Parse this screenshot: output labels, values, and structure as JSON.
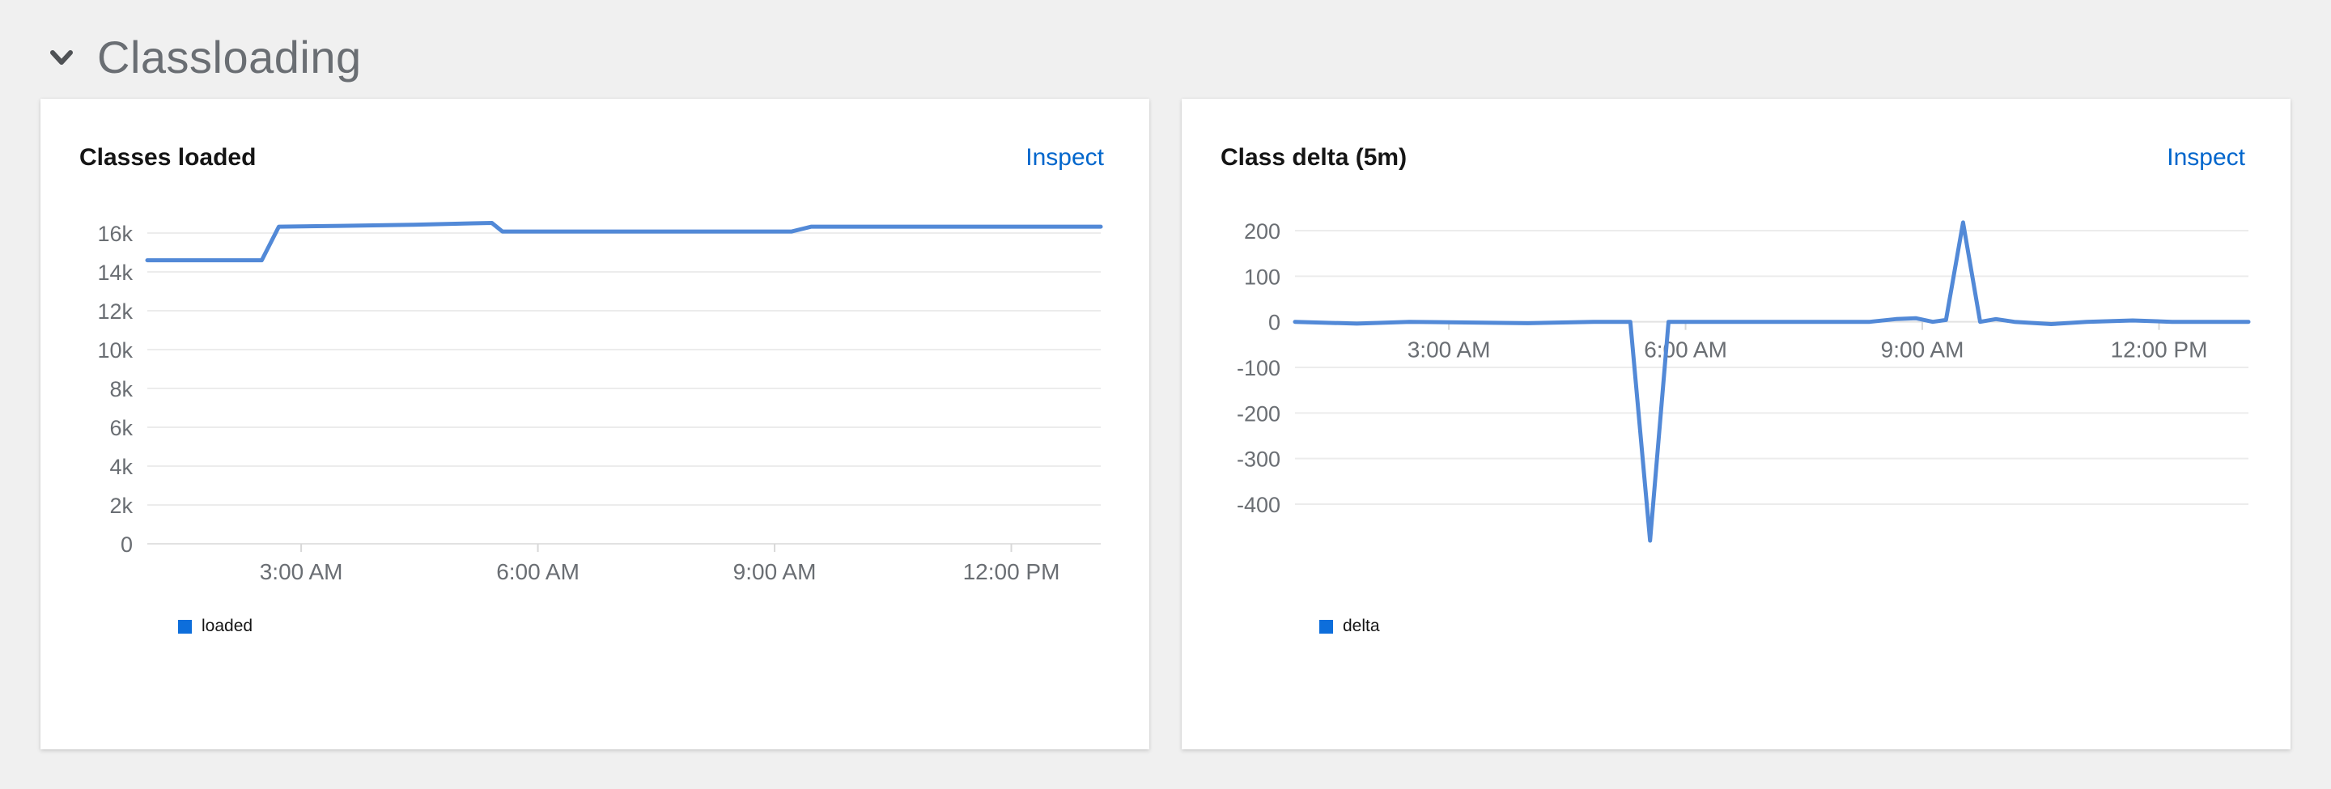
{
  "page": {
    "background": "#f0f0f0"
  },
  "section": {
    "title": "Classloading"
  },
  "colors": {
    "link": "#0066cc",
    "line": "#5289d7",
    "grid": "#ececec",
    "zero_line": "#e2e2e2",
    "tick_mark": "#d8d8d8",
    "axis_text": "#6a6e73",
    "section_title": "#6a6e73",
    "card_title": "#151515"
  },
  "cards": [
    {
      "title": "Classes loaded",
      "action": "Inspect",
      "legend": [
        {
          "label": "loaded",
          "color": "#0d6edb"
        }
      ]
    },
    {
      "title": "Class delta (5m)",
      "action": "Inspect",
      "legend": [
        {
          "label": "delta",
          "color": "#0d6edb"
        }
      ]
    }
  ],
  "chart_data": [
    {
      "type": "line",
      "title": "Classes loaded",
      "legend_entries": [
        "loaded"
      ],
      "legend_position": "bottom-left",
      "grid": "horizontal",
      "x_unit": "minutes_since_midnight",
      "x_range": [
        63,
        788
      ],
      "x_ticks": [
        {
          "t": 180,
          "label": "3:00 AM"
        },
        {
          "t": 360,
          "label": "6:00 AM"
        },
        {
          "t": 540,
          "label": "9:00 AM"
        },
        {
          "t": 720,
          "label": "12:00 PM"
        }
      ],
      "ylim": [
        0,
        16000
      ],
      "y_ticks": [
        {
          "v": 16000,
          "label": "16k"
        },
        {
          "v": 14000,
          "label": "14k"
        },
        {
          "v": 12000,
          "label": "12k"
        },
        {
          "v": 10000,
          "label": "10k"
        },
        {
          "v": 8000,
          "label": "8k"
        },
        {
          "v": 6000,
          "label": "6k"
        },
        {
          "v": 4000,
          "label": "4k"
        },
        {
          "v": 2000,
          "label": "2k"
        },
        {
          "v": 0,
          "label": "0"
        }
      ],
      "series": [
        {
          "name": "loaded",
          "points": [
            [
              63,
              14600
            ],
            [
              150,
              14600
            ],
            [
              163,
              16330
            ],
            [
              210,
              16370
            ],
            [
              265,
              16430
            ],
            [
              310,
              16500
            ],
            [
              325,
              16520
            ],
            [
              333,
              16080
            ],
            [
              553,
              16080
            ],
            [
              568,
              16330
            ],
            [
              788,
              16330
            ]
          ]
        }
      ]
    },
    {
      "type": "line",
      "title": "Class delta (5m)",
      "legend_entries": [
        "delta"
      ],
      "legend_position": "bottom-left",
      "grid": "horizontal",
      "x_unit": "minutes_since_midnight",
      "x_range": [
        63,
        788
      ],
      "x_ticks": [
        {
          "t": 180,
          "label": "3:00 AM"
        },
        {
          "t": 360,
          "label": "6:00 AM"
        },
        {
          "t": 540,
          "label": "9:00 AM"
        },
        {
          "t": 720,
          "label": "12:00 PM"
        }
      ],
      "ylim": [
        -400,
        200
      ],
      "y_ticks": [
        {
          "v": 200,
          "label": "200"
        },
        {
          "v": 100,
          "label": "100"
        },
        {
          "v": 0,
          "label": "0"
        },
        {
          "v": -100,
          "label": "-100"
        },
        {
          "v": -200,
          "label": "-200"
        },
        {
          "v": -300,
          "label": "-300"
        },
        {
          "v": -400,
          "label": "-400"
        }
      ],
      "series": [
        {
          "name": "delta",
          "points": [
            [
              63,
              0
            ],
            [
              110,
              -4
            ],
            [
              150,
              0
            ],
            [
              240,
              -3
            ],
            [
              290,
              0
            ],
            [
              318,
              0
            ],
            [
              333,
              -480
            ],
            [
              347,
              0
            ],
            [
              420,
              0
            ],
            [
              500,
              0
            ],
            [
              520,
              6
            ],
            [
              535,
              8
            ],
            [
              548,
              0
            ],
            [
              558,
              4
            ],
            [
              571,
              218
            ],
            [
              584,
              0
            ],
            [
              596,
              6
            ],
            [
              610,
              0
            ],
            [
              638,
              -5
            ],
            [
              665,
              0
            ],
            [
              700,
              3
            ],
            [
              730,
              0
            ],
            [
              788,
              0
            ]
          ]
        }
      ]
    }
  ]
}
